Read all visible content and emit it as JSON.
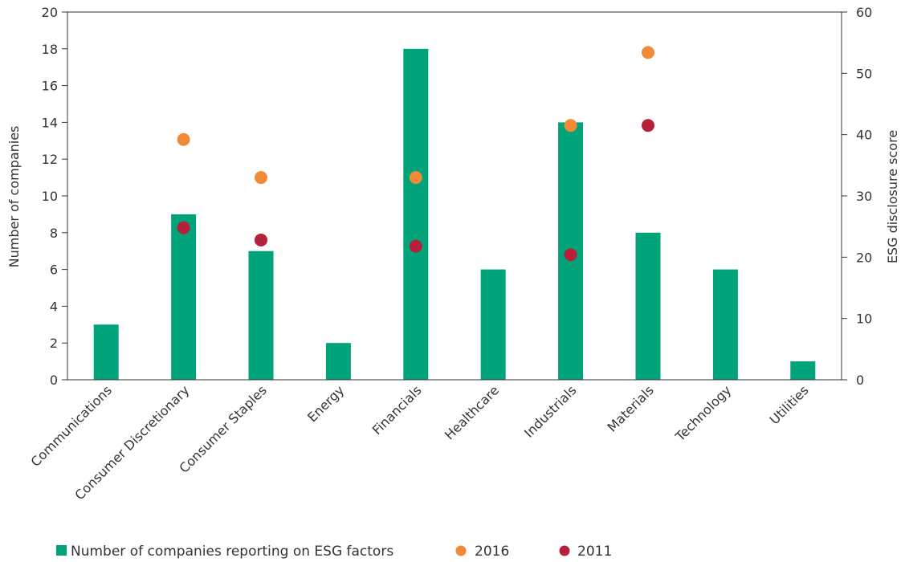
{
  "chart_data": {
    "type": "bar",
    "categories": [
      "Communications",
      "Consumer Discretionary",
      "Consumer Staples",
      "Energy",
      "Financials",
      "Healthcare",
      "Industrials",
      "Materials",
      "Technology",
      "Utilities"
    ],
    "bars": {
      "name": "Number of companies reporting on ESG factors",
      "axis": "left",
      "values": [
        3,
        9,
        7,
        2,
        18,
        6,
        14,
        8,
        6,
        1
      ],
      "color": "#00A37A"
    },
    "points": [
      {
        "name": "2016",
        "axis": "right",
        "color": "#F08A36",
        "values": [
          null,
          39.2,
          33.0,
          null,
          33.0,
          null,
          41.5,
          53.4,
          null,
          null
        ]
      },
      {
        "name": "2011",
        "axis": "right",
        "color": "#B7203A",
        "values": [
          null,
          24.8,
          22.8,
          null,
          21.8,
          null,
          20.4,
          41.5,
          null,
          null
        ]
      }
    ],
    "ylabel": "Number of companies",
    "y2label": "ESG disclosure score",
    "ylim": [
      0,
      20
    ],
    "yticks": [
      0,
      2,
      4,
      6,
      8,
      10,
      12,
      14,
      16,
      18,
      20
    ],
    "y2lim": [
      0,
      60
    ],
    "y2ticks": [
      0,
      10,
      20,
      30,
      40,
      50,
      60
    ],
    "grid": false,
    "legend_position": "bottom-left"
  }
}
